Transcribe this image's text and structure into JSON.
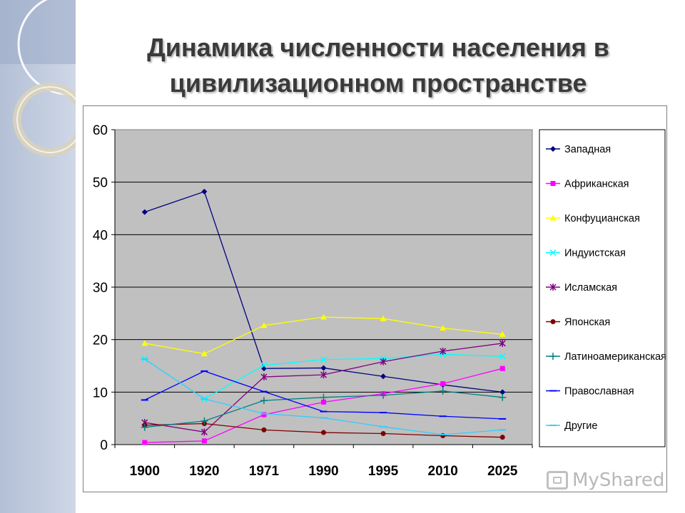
{
  "slide": {
    "title_line1": "Динамика численности населения в",
    "title_line2": "цивилизационном пространстве"
  },
  "watermark": {
    "text": "MyShared"
  },
  "chart_data": {
    "type": "line",
    "title": "",
    "xlabel": "",
    "ylabel": "",
    "categories": [
      "1900",
      "1920",
      "1971",
      "1990",
      "1995",
      "2010",
      "2025"
    ],
    "ylim": [
      0,
      60
    ],
    "yticks": [
      0,
      10,
      20,
      30,
      40,
      50,
      60
    ],
    "grid": true,
    "plot_background": "#c0c0c0",
    "legend_position": "right",
    "series": [
      {
        "name": "Западная",
        "color": "#000080",
        "marker": "diamond",
        "values": [
          44.3,
          48.2,
          14.5,
          14.6,
          13.0,
          11.4,
          10.0
        ]
      },
      {
        "name": "Африканская",
        "color": "#ff00ff",
        "marker": "square",
        "values": [
          0.4,
          0.7,
          5.7,
          8.1,
          9.7,
          11.6,
          14.5
        ]
      },
      {
        "name": "Конфуцианская",
        "color": "#ffff00",
        "marker": "triangle",
        "values": [
          19.3,
          17.3,
          22.7,
          24.3,
          24.0,
          22.2,
          21.0
        ]
      },
      {
        "name": "Индуистская",
        "color": "#00ffff",
        "marker": "x",
        "values": [
          16.3,
          8.7,
          15.1,
          16.2,
          16.4,
          17.2,
          16.8
        ]
      },
      {
        "name": "Исламская",
        "color": "#800080",
        "marker": "star",
        "values": [
          4.2,
          2.4,
          12.9,
          13.3,
          15.8,
          17.8,
          19.3
        ]
      },
      {
        "name": "Японская",
        "color": "#800000",
        "marker": "circle",
        "values": [
          3.7,
          4.0,
          2.8,
          2.3,
          2.1,
          1.7,
          1.4
        ]
      },
      {
        "name": "Латиноамериканская",
        "color": "#008080",
        "marker": "plus",
        "values": [
          3.3,
          4.5,
          8.4,
          9.0,
          9.4,
          10.2,
          9.0
        ]
      },
      {
        "name": "Православная",
        "color": "#0000ff",
        "marker": "dash",
        "values": [
          8.5,
          14.0,
          10.1,
          6.3,
          6.1,
          5.4,
          4.9
        ]
      },
      {
        "name": "Другие",
        "color": "#33ccff",
        "marker": "dash",
        "values": [
          16.3,
          8.7,
          5.9,
          5.1,
          3.4,
          1.9,
          2.8
        ]
      }
    ]
  }
}
